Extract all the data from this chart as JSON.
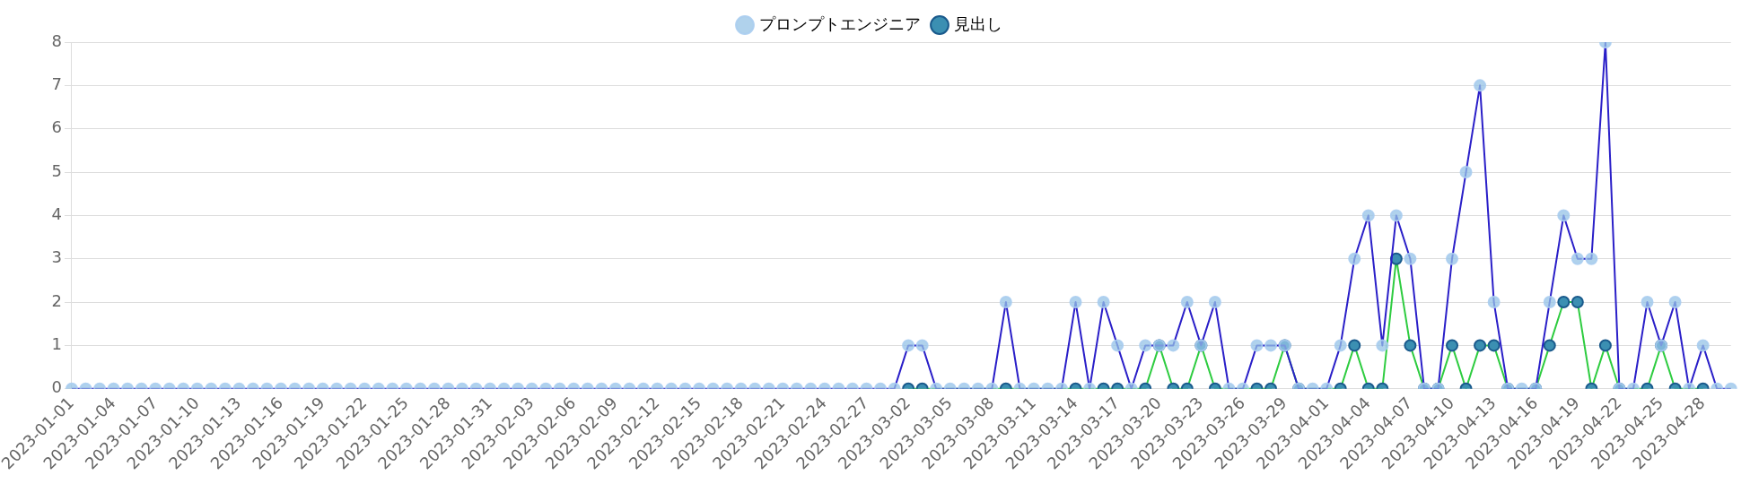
{
  "chart_data": {
    "type": "line",
    "categories": [
      "2023-01-01",
      null,
      null,
      "2023-01-04",
      null,
      null,
      "2023-01-07",
      null,
      null,
      "2023-01-10",
      null,
      null,
      "2023-01-13",
      null,
      null,
      "2023-01-16",
      null,
      null,
      "2023-01-19",
      null,
      null,
      "2023-01-22",
      null,
      null,
      "2023-01-25",
      null,
      null,
      "2023-01-28",
      null,
      null,
      "2023-01-31",
      null,
      null,
      "2023-02-03",
      null,
      null,
      "2023-02-06",
      null,
      null,
      "2023-02-09",
      null,
      null,
      "2023-02-12",
      null,
      null,
      "2023-02-15",
      null,
      null,
      "2023-02-18",
      null,
      null,
      "2023-02-21",
      null,
      null,
      "2023-02-24",
      null,
      null,
      "2023-02-27",
      null,
      null,
      "2023-03-02",
      null,
      null,
      "2023-03-05",
      null,
      null,
      "2023-03-08",
      null,
      null,
      "2023-03-11",
      null,
      null,
      "2023-03-14",
      null,
      null,
      "2023-03-17",
      null,
      null,
      "2023-03-20",
      null,
      null,
      "2023-03-23",
      null,
      null,
      "2023-03-26",
      null,
      null,
      "2023-03-29",
      null,
      null,
      "2023-04-01",
      null,
      null,
      "2023-04-04",
      null,
      null,
      "2023-04-07",
      null,
      null,
      "2023-04-10",
      null,
      null,
      "2023-04-13",
      null,
      null,
      "2023-04-16",
      null,
      null,
      "2023-04-19",
      null,
      null,
      "2023-04-22",
      null,
      null,
      "2023-04-25",
      null,
      null,
      "2023-04-28",
      null,
      null
    ],
    "series": [
      {
        "name": "プロンプトエンジニア",
        "color": "#2a1fc8",
        "values": [
          0,
          0,
          0,
          0,
          0,
          0,
          0,
          0,
          0,
          0,
          0,
          0,
          0,
          0,
          0,
          0,
          0,
          0,
          0,
          0,
          0,
          0,
          0,
          0,
          0,
          0,
          0,
          0,
          0,
          0,
          0,
          0,
          0,
          0,
          0,
          0,
          0,
          0,
          0,
          0,
          0,
          0,
          0,
          0,
          0,
          0,
          0,
          0,
          0,
          0,
          0,
          0,
          0,
          0,
          0,
          0,
          0,
          0,
          0,
          0,
          1,
          1,
          0,
          0,
          0,
          0,
          0,
          2,
          0,
          0,
          0,
          0,
          2,
          0,
          2,
          1,
          0,
          1,
          1,
          1,
          2,
          1,
          2,
          0,
          0,
          1,
          1,
          1,
          0,
          0,
          0,
          1,
          3,
          4,
          1,
          4,
          3,
          0,
          0,
          3,
          5,
          7,
          2,
          0,
          0,
          0,
          2,
          4,
          3,
          3,
          8,
          0,
          0,
          2,
          1,
          2,
          0,
          1,
          0,
          0
        ]
      },
      {
        "name": "見出し",
        "color": "#2ecc40",
        "values": [
          null,
          null,
          null,
          null,
          null,
          null,
          null,
          null,
          null,
          null,
          null,
          null,
          null,
          null,
          null,
          null,
          null,
          null,
          null,
          null,
          null,
          null,
          null,
          null,
          null,
          null,
          null,
          null,
          null,
          null,
          null,
          null,
          null,
          null,
          null,
          null,
          null,
          null,
          null,
          null,
          null,
          null,
          null,
          null,
          null,
          null,
          null,
          null,
          null,
          null,
          null,
          null,
          null,
          null,
          null,
          null,
          null,
          null,
          null,
          null,
          0,
          0,
          null,
          null,
          null,
          null,
          null,
          0,
          null,
          null,
          null,
          null,
          0,
          null,
          0,
          0,
          null,
          0,
          1,
          0,
          0,
          1,
          0,
          null,
          null,
          0,
          0,
          1,
          0,
          null,
          null,
          0,
          1,
          0,
          0,
          3,
          1,
          0,
          0,
          1,
          0,
          1,
          1,
          0,
          null,
          0,
          1,
          2,
          2,
          0,
          1,
          0,
          null,
          0,
          1,
          0,
          null,
          0,
          null,
          null
        ]
      }
    ],
    "ylim": [
      0,
      8
    ],
    "yticks": [
      0,
      1,
      2,
      3,
      4,
      5,
      6,
      7,
      8
    ],
    "grid": "y",
    "legend": "top",
    "marker": "circle",
    "line_style": "solid"
  }
}
